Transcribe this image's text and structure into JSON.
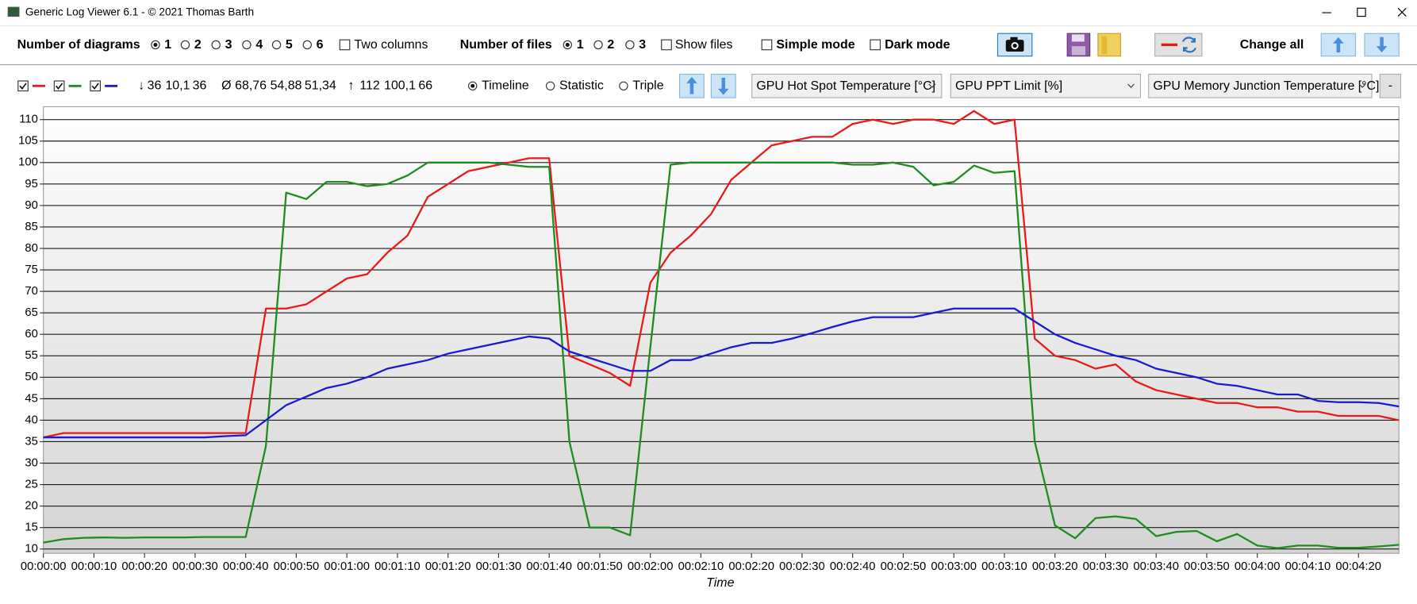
{
  "window": {
    "title": "Generic Log Viewer 6.1 - © 2021 Thomas Barth"
  },
  "toolbar": {
    "diagrams_label": "Number of diagrams",
    "diagram_options": [
      "1",
      "2",
      "3",
      "4",
      "5",
      "6"
    ],
    "two_columns": "Two columns",
    "files_label": "Number of files",
    "file_options": [
      "1",
      "2",
      "3"
    ],
    "show_files": "Show files",
    "simple_mode": "Simple mode",
    "dark_mode": "Dark mode",
    "change_all": "Change all"
  },
  "stats": {
    "min_symbol": "↓",
    "min": [
      "36",
      "10,1",
      "36"
    ],
    "avg_symbol": "Ø",
    "avg": [
      "68,76",
      "54,88",
      "51,34"
    ],
    "max_symbol": "↑",
    "max": [
      "112",
      "100,1",
      "66"
    ]
  },
  "view_options": [
    "Timeline",
    "Statistic",
    "Triple"
  ],
  "remove_button": "-",
  "chart_data": {
    "type": "line",
    "x_label": "Time",
    "x": [
      0,
      4,
      8,
      12,
      16,
      20,
      24,
      28,
      32,
      36,
      40,
      44,
      48,
      52,
      56,
      60,
      64,
      68,
      72,
      76,
      80,
      84,
      88,
      92,
      96,
      100,
      104,
      108,
      112,
      116,
      120,
      124,
      128,
      132,
      136,
      140,
      144,
      148,
      152,
      156,
      160,
      164,
      168,
      172,
      176,
      180,
      184,
      188,
      192,
      196,
      200,
      204,
      208,
      212,
      216,
      220,
      224,
      228,
      232,
      236,
      240,
      244,
      248,
      252,
      256,
      260,
      264,
      268
    ],
    "xlim": [
      0,
      268
    ],
    "xticks": [
      {
        "value": 0,
        "label": "00:00:00"
      },
      {
        "value": 10,
        "label": "00:00:10"
      },
      {
        "value": 20,
        "label": "00:00:20"
      },
      {
        "value": 30,
        "label": "00:00:30"
      },
      {
        "value": 40,
        "label": "00:00:40"
      },
      {
        "value": 50,
        "label": "00:00:50"
      },
      {
        "value": 60,
        "label": "00:01:00"
      },
      {
        "value": 70,
        "label": "00:01:10"
      },
      {
        "value": 80,
        "label": "00:01:20"
      },
      {
        "value": 90,
        "label": "00:01:30"
      },
      {
        "value": 100,
        "label": "00:01:40"
      },
      {
        "value": 110,
        "label": "00:01:50"
      },
      {
        "value": 120,
        "label": "00:02:00"
      },
      {
        "value": 130,
        "label": "00:02:10"
      },
      {
        "value": 140,
        "label": "00:02:20"
      },
      {
        "value": 150,
        "label": "00:02:30"
      },
      {
        "value": 160,
        "label": "00:02:40"
      },
      {
        "value": 170,
        "label": "00:02:50"
      },
      {
        "value": 180,
        "label": "00:03:00"
      },
      {
        "value": 190,
        "label": "00:03:10"
      },
      {
        "value": 200,
        "label": "00:03:20"
      },
      {
        "value": 210,
        "label": "00:03:30"
      },
      {
        "value": 220,
        "label": "00:03:40"
      },
      {
        "value": 230,
        "label": "00:03:50"
      },
      {
        "value": 240,
        "label": "00:04:00"
      },
      {
        "value": 250,
        "label": "00:04:10"
      },
      {
        "value": 260,
        "label": "00:04:20"
      }
    ],
    "ylim": [
      9,
      113
    ],
    "yticks": [
      10,
      15,
      20,
      25,
      30,
      35,
      40,
      45,
      50,
      55,
      60,
      65,
      70,
      75,
      80,
      85,
      90,
      95,
      100,
      105,
      110
    ],
    "grid": true,
    "series": [
      {
        "name": "GPU Hot Spot Temperature [°C]",
        "color": "#e81a1a",
        "values": [
          36,
          37,
          37,
          37,
          37,
          37,
          37,
          37,
          37,
          37,
          37,
          66,
          66,
          67,
          70,
          73,
          74,
          79,
          83,
          92,
          95,
          98,
          99,
          100,
          101,
          101,
          55,
          53,
          51,
          48,
          72,
          79,
          83,
          88,
          96,
          100,
          104,
          105,
          106,
          106,
          109,
          110,
          109,
          110,
          110,
          109,
          112,
          109,
          110,
          59,
          55,
          54,
          52,
          53,
          49,
          47,
          46,
          45,
          44,
          44,
          43,
          43,
          42,
          42,
          41,
          41,
          41,
          40
        ]
      },
      {
        "name": "GPU PPT Limit [%]",
        "color": "#1e8c1e",
        "values": [
          11.5,
          12.3,
          12.6,
          12.7,
          12.6,
          12.7,
          12.7,
          12.7,
          12.8,
          12.8,
          12.8,
          34,
          93,
          91.5,
          95.5,
          95.5,
          94.5,
          95,
          97,
          100,
          100,
          100,
          100,
          99.5,
          99,
          99,
          35,
          15,
          15,
          13.2,
          57,
          99.5,
          100,
          100,
          100,
          100,
          100,
          100,
          100,
          100,
          99.5,
          99.5,
          100,
          99,
          94.7,
          95.5,
          99.3,
          97.6,
          98,
          35,
          15.5,
          12.5,
          17.2,
          17.6,
          17,
          13,
          14,
          14.2,
          11.8,
          13.5,
          10.8,
          10.2,
          10.8,
          10.8,
          10.3,
          10.3,
          10.6,
          11
        ]
      },
      {
        "name": "GPU Memory Junction Temperature [°C]",
        "color": "#1a1ad2",
        "values": [
          36,
          36,
          36,
          36,
          36,
          36,
          36,
          36,
          36,
          36.3,
          36.5,
          40,
          43.5,
          45.5,
          47.5,
          48.5,
          50,
          52,
          53,
          54,
          55.5,
          56.5,
          57.5,
          58.5,
          59.5,
          59,
          56,
          54.5,
          53,
          51.5,
          51.5,
          54,
          54,
          55.5,
          57,
          58,
          58,
          59,
          60.3,
          61.7,
          63,
          64,
          64,
          64,
          65,
          66,
          66,
          66,
          66,
          63,
          60,
          58,
          56.5,
          55,
          54,
          52,
          51,
          50,
          48.5,
          48,
          47,
          46,
          46,
          44.5,
          44.2,
          44.2,
          44,
          43.2
        ]
      }
    ]
  }
}
